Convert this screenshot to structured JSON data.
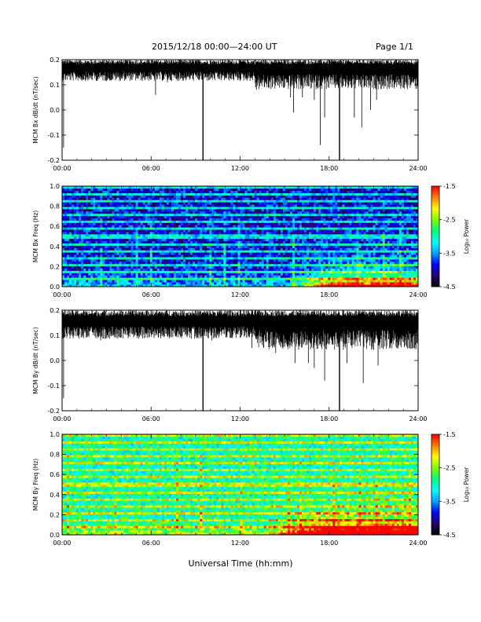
{
  "header": {
    "title": "2015/12/18   00:00—24:00 UT",
    "page": "Page 1/1"
  },
  "footer": {
    "xlabel": "Universal Time (hh:mm)"
  },
  "colors": {
    "trace": "#000000",
    "colorbar": [
      "#000000",
      "#2a006a",
      "#0000ff",
      "#00a0ff",
      "#00ffff",
      "#00ff80",
      "#80ff00",
      "#ffff00",
      "#ff8000",
      "#ff0000"
    ]
  },
  "chart_data": [
    {
      "type": "line",
      "ylabel": "MCM Bx dB/dt (nT/sec)",
      "x_ticks": [
        "00:00",
        "06:00",
        "12:00",
        "18:00",
        "24:00"
      ],
      "xlim_hours": [
        0,
        24
      ],
      "ylim": [
        -0.2,
        0.2
      ],
      "y_ticks": [
        "-0.2",
        "-0.1",
        "0.0",
        "0.1",
        "0.2"
      ],
      "baseline": 0.17,
      "noise": 0.015,
      "spikes": [
        {
          "t": 0.1,
          "v": -0.15
        },
        {
          "t": 0.7,
          "v": 0.13
        },
        {
          "t": 1.8,
          "v": 0.12
        },
        {
          "t": 3.3,
          "v": 0.12
        },
        {
          "t": 6.3,
          "v": 0.06
        },
        {
          "t": 7.1,
          "v": 0.11
        },
        {
          "t": 9.5,
          "v": -0.2
        },
        {
          "t": 13.1,
          "v": 0.08
        },
        {
          "t": 15.4,
          "v": 0.05
        },
        {
          "t": 15.6,
          "v": -0.01
        },
        {
          "t": 16.2,
          "v": 0.05
        },
        {
          "t": 17.0,
          "v": 0.04
        },
        {
          "t": 17.4,
          "v": -0.14
        },
        {
          "t": 17.7,
          "v": -0.03
        },
        {
          "t": 18.7,
          "v": -0.2
        },
        {
          "t": 19.7,
          "v": -0.03
        },
        {
          "t": 20.2,
          "v": -0.07
        },
        {
          "t": 20.8,
          "v": 0.0
        },
        {
          "t": 21.2,
          "v": 0.04
        }
      ]
    },
    {
      "type": "heatmap",
      "ylabel": "MCM Bx Freq (Hz)",
      "x_ticks": [
        "00:00",
        "06:00",
        "12:00",
        "18:00",
        "24:00"
      ],
      "xlim_hours": [
        0,
        24
      ],
      "ylim": [
        0.0,
        1.0
      ],
      "y_ticks": [
        "0.0",
        "0.2",
        "0.4",
        "0.6",
        "0.8",
        "1.0"
      ],
      "colorbar": {
        "label": "Log₁₀ Power",
        "range": [
          -4.5,
          -1.5
        ],
        "ticks": [
          "-1.5",
          "-2.5",
          "-3.5",
          "-4.5"
        ]
      },
      "background_level": -3.9,
      "activity_start_hours": 15.0,
      "activity_peak_hours": 18.0,
      "harmonics_hz": [
        0.07,
        0.14,
        0.21,
        0.28,
        0.36,
        0.43,
        0.5,
        0.57,
        0.64,
        0.71,
        0.78,
        0.86,
        0.93,
        0.99
      ]
    },
    {
      "type": "line",
      "ylabel": "MCM By dB/dt (nT/sec)",
      "x_ticks": [
        "00:00",
        "06:00",
        "12:00",
        "18:00",
        "24:00"
      ],
      "xlim_hours": [
        0,
        24
      ],
      "ylim": [
        -0.2,
        0.2
      ],
      "y_ticks": [
        "-0.2",
        "-0.1",
        "0.0",
        "0.1",
        "0.2"
      ],
      "baseline": 0.16,
      "noise": 0.02,
      "spikes": [
        {
          "t": 0.1,
          "v": -0.15
        },
        {
          "t": 1.1,
          "v": 0.1
        },
        {
          "t": 2.6,
          "v": 0.08
        },
        {
          "t": 6.2,
          "v": 0.09
        },
        {
          "t": 6.8,
          "v": 0.1
        },
        {
          "t": 9.5,
          "v": -0.2
        },
        {
          "t": 10.1,
          "v": 0.08
        },
        {
          "t": 12.8,
          "v": 0.05
        },
        {
          "t": 14.4,
          "v": 0.03
        },
        {
          "t": 15.7,
          "v": -0.01
        },
        {
          "t": 16.6,
          "v": -0.01
        },
        {
          "t": 17.0,
          "v": -0.03
        },
        {
          "t": 17.7,
          "v": -0.08
        },
        {
          "t": 18.7,
          "v": -0.2
        },
        {
          "t": 19.2,
          "v": -0.01
        },
        {
          "t": 20.3,
          "v": -0.09
        },
        {
          "t": 21.3,
          "v": -0.02
        },
        {
          "t": 22.4,
          "v": 0.08
        }
      ]
    },
    {
      "type": "heatmap",
      "ylabel": "MCM By Freq (Hz)",
      "x_ticks": [
        "00:00",
        "06:00",
        "12:00",
        "18:00",
        "24:00"
      ],
      "xlim_hours": [
        0,
        24
      ],
      "ylim": [
        0.0,
        1.0
      ],
      "y_ticks": [
        "0.0",
        "0.2",
        "0.4",
        "0.6",
        "0.8",
        "1.0"
      ],
      "colorbar": {
        "label": "Log₁₀ Power",
        "range": [
          -4.5,
          -1.5
        ],
        "ticks": [
          "-1.5",
          "-2.5",
          "-3.5",
          "-4.5"
        ]
      },
      "background_level": -3.0,
      "activity_start_hours": 13.5,
      "activity_peak_hours": 18.0,
      "harmonics_hz": [
        0.07,
        0.14,
        0.21,
        0.28,
        0.36,
        0.43,
        0.5,
        0.57,
        0.64,
        0.71,
        0.78,
        0.86,
        0.93,
        0.99
      ]
    }
  ]
}
